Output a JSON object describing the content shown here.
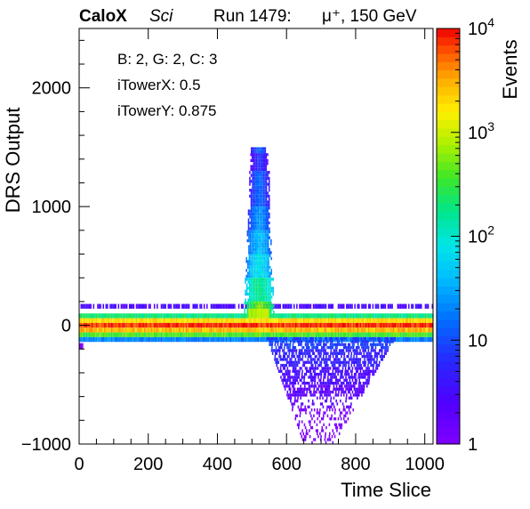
{
  "title": {
    "experiment": "CaloX",
    "detector": "Sci",
    "run": "Run 1479:",
    "beam": "μ⁺, 150 GeV"
  },
  "info_box": {
    "line1": "B: 2, G: 2, C: 3",
    "line2": "iTowerX: 0.5",
    "line3": "iTowerY: 0.875"
  },
  "colorbar": {
    "label": "Events",
    "tick_labels": [
      {
        "base": "10",
        "exp": "4",
        "value": 10000
      },
      {
        "base": "10",
        "exp": "3",
        "value": 1000
      },
      {
        "base": "10",
        "exp": "2",
        "value": 100
      },
      {
        "base": "10",
        "exp": "",
        "value": 10
      },
      {
        "base": "1",
        "exp": "",
        "value": 1
      }
    ],
    "scale": "log",
    "range": [
      1,
      10000
    ]
  },
  "chart_data": {
    "type": "heatmap",
    "xlabel": "Time Slice",
    "ylabel": "DRS Output",
    "xlim": [
      0,
      1024
    ],
    "ylim": [
      -1000,
      2500
    ],
    "z_scale": "log",
    "z_range": [
      1,
      10000
    ],
    "x_ticks": [
      0,
      200,
      400,
      600,
      800,
      1000
    ],
    "y_ticks": [
      -1000,
      0,
      1000,
      2000
    ],
    "x_tick_labels": [
      "0",
      "200",
      "400",
      "600",
      "800",
      "1000"
    ],
    "y_tick_labels": [
      "−1000",
      "0",
      "1000",
      "2000"
    ],
    "pedestal_band": {
      "x_range": [
        0,
        1024
      ],
      "rows": [
        {
          "y": [
            140,
            180
          ],
          "counts": 3
        },
        {
          "y": [
            60,
            100
          ],
          "counts": 200
        },
        {
          "y": [
            20,
            60
          ],
          "counts": 2000
        },
        {
          "y": [
            -20,
            20
          ],
          "counts": 8000
        },
        {
          "y": [
            -60,
            -20
          ],
          "counts": 3000
        },
        {
          "y": [
            -100,
            -60
          ],
          "counts": 400
        },
        {
          "y": [
            -140,
            -100
          ],
          "counts": 20
        }
      ]
    },
    "signal_pulse": {
      "x_range": [
        470,
        560
      ],
      "peak_time": 520,
      "max_amplitude": 1500,
      "bins": [
        {
          "y": [
            1450,
            1500
          ],
          "counts": 12
        },
        {
          "y": [
            1300,
            1450
          ],
          "counts": 6
        },
        {
          "y": [
            1000,
            1300
          ],
          "counts": 12
        },
        {
          "y": [
            800,
            1000
          ],
          "counts": 20
        },
        {
          "y": [
            600,
            800
          ],
          "counts": 35
        },
        {
          "y": [
            400,
            600
          ],
          "counts": 60
        },
        {
          "y": [
            200,
            400
          ],
          "counts": 150
        },
        {
          "y": [
            100,
            200
          ],
          "counts": 400
        }
      ]
    },
    "undershoot": {
      "x_range": [
        540,
        920
      ],
      "min_y": -1000,
      "bins": [
        {
          "y": [
            -200,
            -100
          ],
          "counts": 8
        },
        {
          "y": [
            -350,
            -200
          ],
          "counts": 5
        },
        {
          "y": [
            -500,
            -350
          ],
          "counts": 3
        },
        {
          "y": [
            -700,
            -500
          ],
          "counts": 2
        },
        {
          "y": [
            -1000,
            -700
          ],
          "counts": 1
        }
      ]
    }
  }
}
